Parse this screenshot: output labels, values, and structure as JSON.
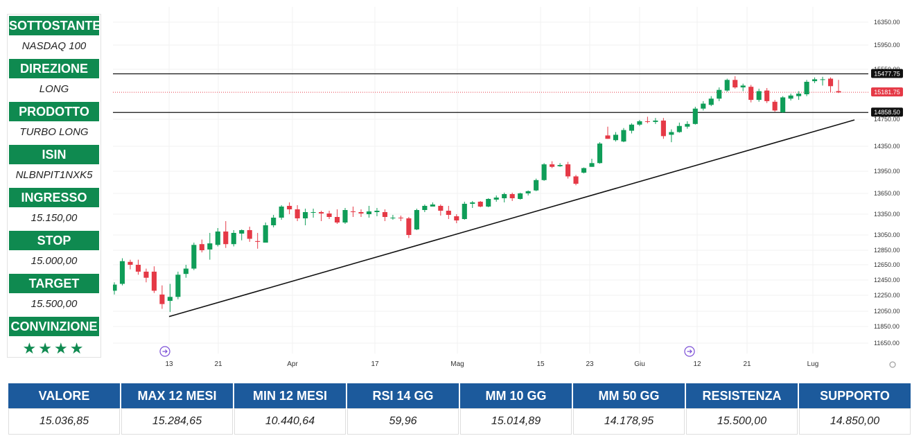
{
  "panel": {
    "items": [
      {
        "label": "SOTTOSTANTE",
        "value": "NASDAQ 100"
      },
      {
        "label": "DIREZIONE",
        "value": "LONG"
      },
      {
        "label": "PRODOTTO",
        "value": "TURBO LONG"
      },
      {
        "label": "ISIN",
        "value": "NLBNPIT1NXK5"
      },
      {
        "label": "INGRESSO",
        "value": "15.150,00"
      },
      {
        "label": "STOP",
        "value": "15.000,00"
      },
      {
        "label": "TARGET",
        "value": "15.500,00"
      }
    ],
    "conviction_label": "CONVINZIONE",
    "conviction_stars": "★★★★"
  },
  "stats": {
    "headers": [
      "VALORE",
      "MAX 12 MESI",
      "MIN 12 MESI",
      "RSI 14 GG",
      "MM 10 GG",
      "MM 50 GG",
      "RESISTENZA",
      "SUPPORTO"
    ],
    "values": [
      "15.036,85",
      "15.284,65",
      "10.440,64",
      "59,96",
      "15.014,89",
      "14.178,95",
      "15.500,00",
      "14.850,00"
    ]
  },
  "chart_data": {
    "type": "candlestick",
    "up_color": "#0f9d58",
    "down_color": "#e53946",
    "y_ticks": [
      "16350.00",
      "15950.00",
      "15550.00",
      "14750.00",
      "14350.00",
      "13950.00",
      "13650.00",
      "13350.00",
      "13050.00",
      "12850.00",
      "12650.00",
      "12450.00",
      "12250.00",
      "12050.00",
      "11850.00",
      "11650.00"
    ],
    "x_ticks": [
      "13",
      "21",
      "Apr",
      "17",
      "Mag",
      "15",
      "23",
      "Giu",
      "12",
      "21",
      "Lug"
    ],
    "price_labels": {
      "resistance": "15477.75",
      "current": "15181.75",
      "support": "14858.50"
    },
    "horizontal_lines": {
      "resistance": 15477.75,
      "support": 14858.5,
      "current": 15181.75
    },
    "trendline": {
      "from_price": 11980,
      "to_price": 14740
    },
    "candles": [
      {
        "o": 12310,
        "h": 12420,
        "l": 12260,
        "c": 12390
      },
      {
        "o": 12400,
        "h": 12740,
        "l": 12380,
        "c": 12700
      },
      {
        "o": 12690,
        "h": 12720,
        "l": 12590,
        "c": 12650
      },
      {
        "o": 12650,
        "h": 12720,
        "l": 12520,
        "c": 12560
      },
      {
        "o": 12560,
        "h": 12600,
        "l": 12420,
        "c": 12480
      },
      {
        "o": 12560,
        "h": 12630,
        "l": 12280,
        "c": 12310
      },
      {
        "o": 12260,
        "h": 12380,
        "l": 12080,
        "c": 12140
      },
      {
        "o": 12180,
        "h": 12400,
        "l": 12040,
        "c": 12230
      },
      {
        "o": 12230,
        "h": 12560,
        "l": 12200,
        "c": 12520
      },
      {
        "o": 12530,
        "h": 12650,
        "l": 12480,
        "c": 12600
      },
      {
        "o": 12600,
        "h": 12950,
        "l": 12580,
        "c": 12920
      },
      {
        "o": 12930,
        "h": 12990,
        "l": 12820,
        "c": 12850
      },
      {
        "o": 12860,
        "h": 13080,
        "l": 12720,
        "c": 12940
      },
      {
        "o": 12920,
        "h": 13150,
        "l": 12900,
        "c": 13100
      },
      {
        "o": 13100,
        "h": 13250,
        "l": 12880,
        "c": 12930
      },
      {
        "o": 12930,
        "h": 13120,
        "l": 12900,
        "c": 13080
      },
      {
        "o": 13070,
        "h": 13130,
        "l": 12980,
        "c": 13120
      },
      {
        "o": 13120,
        "h": 13170,
        "l": 12960,
        "c": 13000
      },
      {
        "o": 12970,
        "h": 13080,
        "l": 12870,
        "c": 12960
      },
      {
        "o": 12950,
        "h": 13230,
        "l": 12950,
        "c": 13190
      },
      {
        "o": 13190,
        "h": 13340,
        "l": 13160,
        "c": 13300
      },
      {
        "o": 13300,
        "h": 13480,
        "l": 13270,
        "c": 13460
      },
      {
        "o": 13470,
        "h": 13520,
        "l": 13350,
        "c": 13420
      },
      {
        "o": 13420,
        "h": 13480,
        "l": 13250,
        "c": 13290
      },
      {
        "o": 13290,
        "h": 13430,
        "l": 13190,
        "c": 13380
      },
      {
        "o": 13370,
        "h": 13430,
        "l": 13300,
        "c": 13380
      },
      {
        "o": 13380,
        "h": 13400,
        "l": 13250,
        "c": 13360
      },
      {
        "o": 13360,
        "h": 13400,
        "l": 13280,
        "c": 13310
      },
      {
        "o": 13310,
        "h": 13420,
        "l": 13210,
        "c": 13230
      },
      {
        "o": 13230,
        "h": 13440,
        "l": 13210,
        "c": 13410
      },
      {
        "o": 13390,
        "h": 13460,
        "l": 13310,
        "c": 13380
      },
      {
        "o": 13380,
        "h": 13420,
        "l": 13310,
        "c": 13360
      },
      {
        "o": 13350,
        "h": 13470,
        "l": 13300,
        "c": 13390
      },
      {
        "o": 13380,
        "h": 13440,
        "l": 13320,
        "c": 13400
      },
      {
        "o": 13380,
        "h": 13420,
        "l": 13250,
        "c": 13310
      },
      {
        "o": 13300,
        "h": 13340,
        "l": 13270,
        "c": 13300
      },
      {
        "o": 13300,
        "h": 13330,
        "l": 13250,
        "c": 13290
      },
      {
        "o": 13290,
        "h": 13310,
        "l": 13010,
        "c": 13050
      },
      {
        "o": 13130,
        "h": 13430,
        "l": 13120,
        "c": 13410
      },
      {
        "o": 13410,
        "h": 13490,
        "l": 13380,
        "c": 13470
      },
      {
        "o": 13460,
        "h": 13520,
        "l": 13460,
        "c": 13490
      },
      {
        "o": 13470,
        "h": 13490,
        "l": 13330,
        "c": 13400
      },
      {
        "o": 13400,
        "h": 13470,
        "l": 13280,
        "c": 13340
      },
      {
        "o": 13320,
        "h": 13350,
        "l": 13220,
        "c": 13260
      },
      {
        "o": 13280,
        "h": 13530,
        "l": 13270,
        "c": 13500
      },
      {
        "o": 13500,
        "h": 13540,
        "l": 13440,
        "c": 13520
      },
      {
        "o": 13530,
        "h": 13540,
        "l": 13450,
        "c": 13460
      },
      {
        "o": 13460,
        "h": 13580,
        "l": 13450,
        "c": 13570
      },
      {
        "o": 13560,
        "h": 13620,
        "l": 13530,
        "c": 13590
      },
      {
        "o": 13580,
        "h": 13660,
        "l": 13520,
        "c": 13640
      },
      {
        "o": 13640,
        "h": 13660,
        "l": 13540,
        "c": 13580
      },
      {
        "o": 13570,
        "h": 13660,
        "l": 13560,
        "c": 13650
      },
      {
        "o": 13650,
        "h": 13690,
        "l": 13620,
        "c": 13680
      },
      {
        "o": 13690,
        "h": 13850,
        "l": 13680,
        "c": 13830
      },
      {
        "o": 13830,
        "h": 14080,
        "l": 13820,
        "c": 14060
      },
      {
        "o": 14060,
        "h": 14110,
        "l": 14000,
        "c": 14020
      },
      {
        "o": 14030,
        "h": 14080,
        "l": 14020,
        "c": 14050
      },
      {
        "o": 14060,
        "h": 14100,
        "l": 13850,
        "c": 13880
      },
      {
        "o": 13880,
        "h": 13900,
        "l": 13760,
        "c": 13780
      },
      {
        "o": 13930,
        "h": 14010,
        "l": 13920,
        "c": 14000
      },
      {
        "o": 14020,
        "h": 14150,
        "l": 14020,
        "c": 14080
      },
      {
        "o": 14080,
        "h": 14410,
        "l": 14070,
        "c": 14390
      },
      {
        "o": 14510,
        "h": 14640,
        "l": 14460,
        "c": 14460
      },
      {
        "o": 14440,
        "h": 14560,
        "l": 14420,
        "c": 14520
      },
      {
        "o": 14420,
        "h": 14620,
        "l": 14410,
        "c": 14590
      },
      {
        "o": 14580,
        "h": 14690,
        "l": 14540,
        "c": 14670
      },
      {
        "o": 14670,
        "h": 14740,
        "l": 14650,
        "c": 14720
      },
      {
        "o": 14720,
        "h": 14790,
        "l": 14690,
        "c": 14710
      },
      {
        "o": 14710,
        "h": 14770,
        "l": 14680,
        "c": 14730
      },
      {
        "o": 14730,
        "h": 14770,
        "l": 14460,
        "c": 14500
      },
      {
        "o": 14520,
        "h": 14600,
        "l": 14410,
        "c": 14560
      },
      {
        "o": 14560,
        "h": 14700,
        "l": 14550,
        "c": 14650
      },
      {
        "o": 14640,
        "h": 14720,
        "l": 14610,
        "c": 14680
      },
      {
        "o": 14680,
        "h": 14950,
        "l": 14670,
        "c": 14920
      },
      {
        "o": 14920,
        "h": 15040,
        "l": 14890,
        "c": 15000
      },
      {
        "o": 14980,
        "h": 15120,
        "l": 14960,
        "c": 15080
      },
      {
        "o": 15080,
        "h": 15260,
        "l": 15040,
        "c": 15220
      },
      {
        "o": 15210,
        "h": 15400,
        "l": 15190,
        "c": 15380
      },
      {
        "o": 15380,
        "h": 15440,
        "l": 15240,
        "c": 15260
      },
      {
        "o": 15260,
        "h": 15320,
        "l": 15200,
        "c": 15290
      },
      {
        "o": 15270,
        "h": 15300,
        "l": 15020,
        "c": 15060
      },
      {
        "o": 15060,
        "h": 15240,
        "l": 15030,
        "c": 15200
      },
      {
        "o": 15210,
        "h": 15250,
        "l": 15010,
        "c": 15040
      },
      {
        "o": 15030,
        "h": 15060,
        "l": 14870,
        "c": 14890
      },
      {
        "o": 14860,
        "h": 15120,
        "l": 14850,
        "c": 15100
      },
      {
        "o": 15080,
        "h": 15160,
        "l": 15050,
        "c": 15130
      },
      {
        "o": 15120,
        "h": 15200,
        "l": 15060,
        "c": 15160
      },
      {
        "o": 15150,
        "h": 15380,
        "l": 15120,
        "c": 15350
      },
      {
        "o": 15360,
        "h": 15420,
        "l": 15330,
        "c": 15390
      },
      {
        "o": 15390,
        "h": 15430,
        "l": 15290,
        "c": 15390
      },
      {
        "o": 15400,
        "h": 15420,
        "l": 15180,
        "c": 15280
      },
      {
        "o": 15200,
        "h": 15380,
        "l": 15170,
        "c": 15180
      }
    ]
  }
}
